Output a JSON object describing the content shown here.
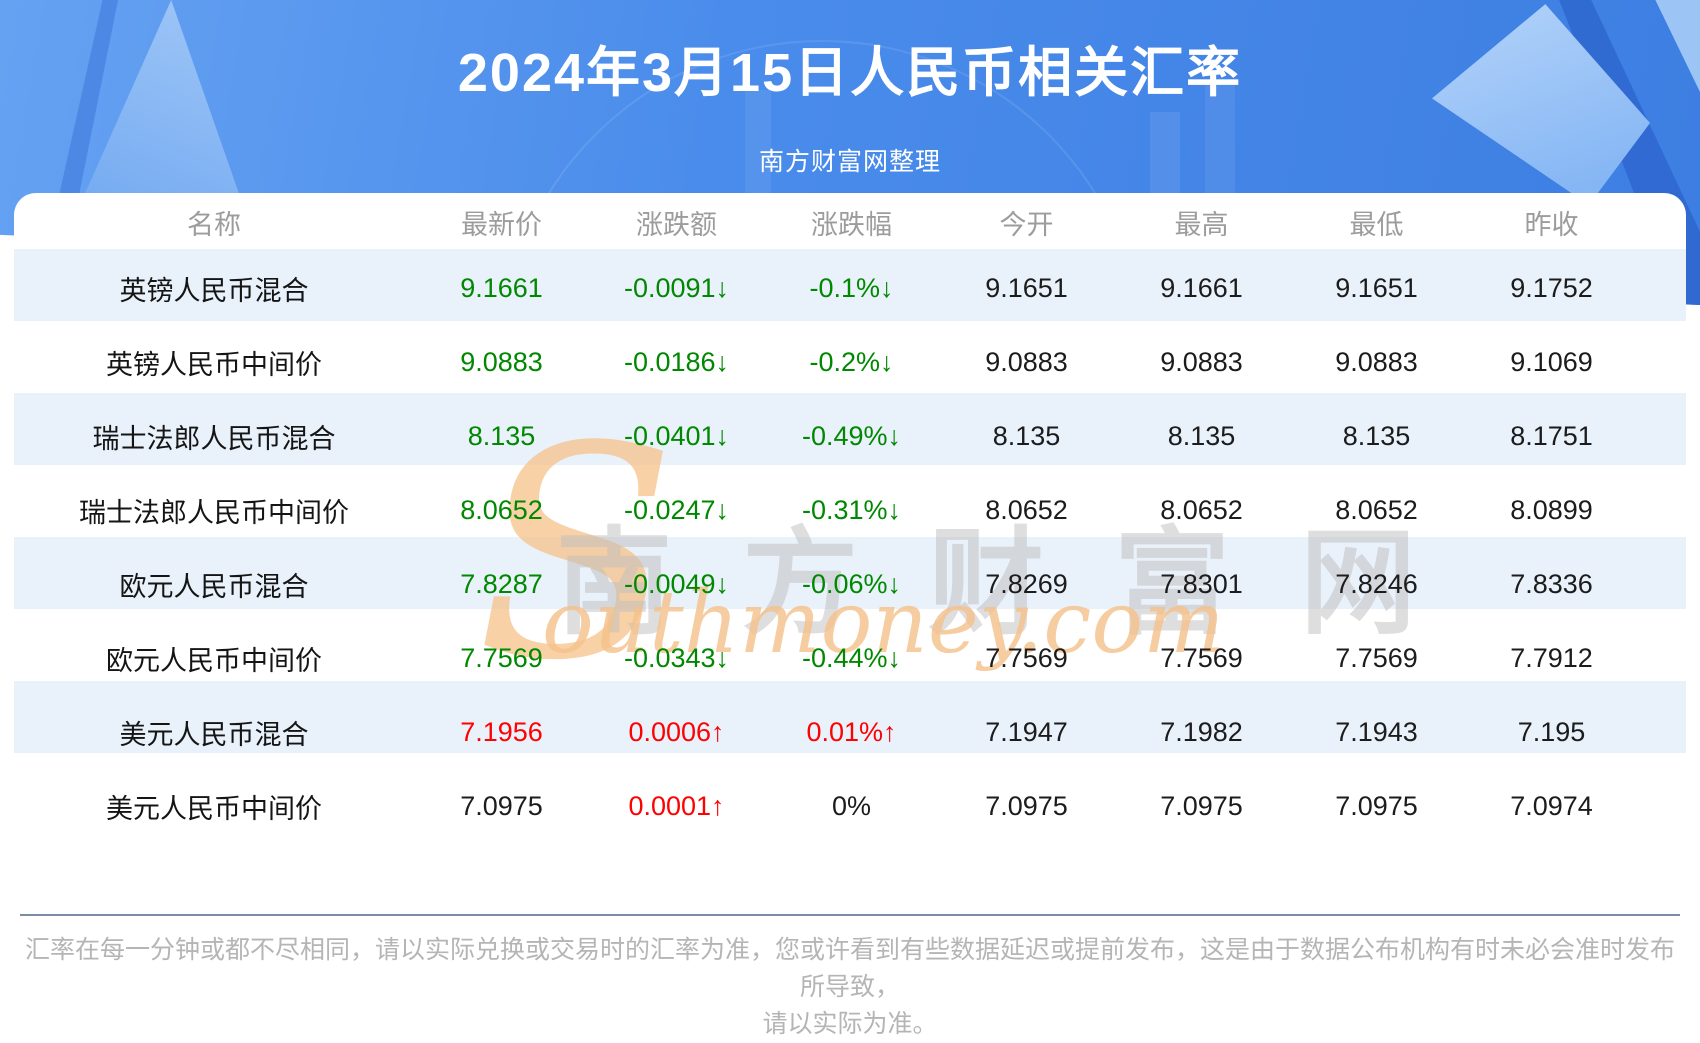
{
  "page": {
    "title": "2024年3月15日人民币相关汇率",
    "subtitle": "南方财富网整理"
  },
  "table": {
    "columns": [
      "名称",
      "最新价",
      "涨跌额",
      "涨跌幅",
      "今开",
      "最高",
      "最低",
      "昨收"
    ],
    "column_keys": [
      "latest",
      "change",
      "change-pct",
      "open",
      "high",
      "low",
      "prev-close"
    ],
    "rows": [
      {
        "name": "英镑人民币混合",
        "values": [
          "9.1661",
          "-0.0091↓",
          "-0.1%↓",
          "9.1651",
          "9.1661",
          "9.1651",
          "9.1752"
        ],
        "value_colors": [
          "down",
          "down",
          "down",
          "neutral",
          "neutral",
          "neutral",
          "neutral"
        ]
      },
      {
        "name": "英镑人民币中间价",
        "values": [
          "9.0883",
          "-0.0186↓",
          "-0.2%↓",
          "9.0883",
          "9.0883",
          "9.0883",
          "9.1069"
        ],
        "value_colors": [
          "down",
          "down",
          "down",
          "neutral",
          "neutral",
          "neutral",
          "neutral"
        ]
      },
      {
        "name": "瑞士法郎人民币混合",
        "values": [
          "8.135",
          "-0.0401↓",
          "-0.49%↓",
          "8.135",
          "8.135",
          "8.135",
          "8.1751"
        ],
        "value_colors": [
          "down",
          "down",
          "down",
          "neutral",
          "neutral",
          "neutral",
          "neutral"
        ]
      },
      {
        "name": "瑞士法郎人民币中间价",
        "values": [
          "8.0652",
          "-0.0247↓",
          "-0.31%↓",
          "8.0652",
          "8.0652",
          "8.0652",
          "8.0899"
        ],
        "value_colors": [
          "down",
          "down",
          "down",
          "neutral",
          "neutral",
          "neutral",
          "neutral"
        ]
      },
      {
        "name": "欧元人民币混合",
        "values": [
          "7.8287",
          "-0.0049↓",
          "-0.06%↓",
          "7.8269",
          "7.8301",
          "7.8246",
          "7.8336"
        ],
        "value_colors": [
          "down",
          "down",
          "down",
          "neutral",
          "neutral",
          "neutral",
          "neutral"
        ]
      },
      {
        "name": "欧元人民币中间价",
        "values": [
          "7.7569",
          "-0.0343↓",
          "-0.44%↓",
          "7.7569",
          "7.7569",
          "7.7569",
          "7.7912"
        ],
        "value_colors": [
          "down",
          "down",
          "down",
          "neutral",
          "neutral",
          "neutral",
          "neutral"
        ]
      },
      {
        "name": "美元人民币混合",
        "values": [
          "7.1956",
          "0.0006↑",
          "0.01%↑",
          "7.1947",
          "7.1982",
          "7.1943",
          "7.195"
        ],
        "value_colors": [
          "up",
          "up",
          "up",
          "neutral",
          "neutral",
          "neutral",
          "neutral"
        ]
      },
      {
        "name": "美元人民币中间价",
        "values": [
          "7.0975",
          "0.0001↑",
          "0%",
          "7.0975",
          "7.0975",
          "7.0975",
          "7.0974"
        ],
        "value_colors": [
          "neutral",
          "up",
          "neutral",
          "neutral",
          "neutral",
          "neutral",
          "neutral"
        ]
      }
    ]
  },
  "watermark": {
    "initial": "S",
    "cn": "南方财富网",
    "en": "outhmoney.com"
  },
  "disclaimer": {
    "lines": [
      "汇率在每一分钟或都不尽相同，请以实际兑换或交易时的汇率为准，您或许看到有些数据延迟或提前发布，这是由于数据公布机构有时未必会准时发布所导致，",
      "请以实际为准。"
    ]
  },
  "colors": {
    "up_red": "#fe0101",
    "down_green": "#018801",
    "neutral_black": "#1c1c1c",
    "stripe_blue": "#e9f1fa",
    "header_gray": "#9c9c9c",
    "hero_blue": "#4a8ceb"
  },
  "chart_data": {
    "type": "table",
    "title": "2024年3月15日人民币相关汇率",
    "subtitle": "南方财富网整理",
    "columns": [
      "名称",
      "最新价",
      "涨跌额",
      "涨跌幅",
      "今开",
      "最高",
      "最低",
      "昨收"
    ],
    "rows": [
      [
        "英镑人民币混合",
        9.1661,
        -0.0091,
        "-0.1%",
        9.1651,
        9.1661,
        9.1651,
        9.1752
      ],
      [
        "英镑人民币中间价",
        9.0883,
        -0.0186,
        "-0.2%",
        9.0883,
        9.0883,
        9.0883,
        9.1069
      ],
      [
        "瑞士法郎人民币混合",
        8.135,
        -0.0401,
        "-0.49%",
        8.135,
        8.135,
        8.135,
        8.1751
      ],
      [
        "瑞士法郎人民币中间价",
        8.0652,
        -0.0247,
        "-0.31%",
        8.0652,
        8.0652,
        8.0652,
        8.0899
      ],
      [
        "欧元人民币混合",
        7.8287,
        -0.0049,
        "-0.06%",
        7.8269,
        7.8301,
        7.8246,
        7.8336
      ],
      [
        "欧元人民币中间价",
        7.7569,
        -0.0343,
        "-0.44%",
        7.7569,
        7.7569,
        7.7569,
        7.7912
      ],
      [
        "美元人民币混合",
        7.1956,
        0.0006,
        "0.01%",
        7.1947,
        7.1982,
        7.1943,
        7.195
      ],
      [
        "美元人民币中间价",
        7.0975,
        0.0001,
        "0%",
        7.0975,
        7.0975,
        7.0975,
        7.0974
      ]
    ]
  }
}
